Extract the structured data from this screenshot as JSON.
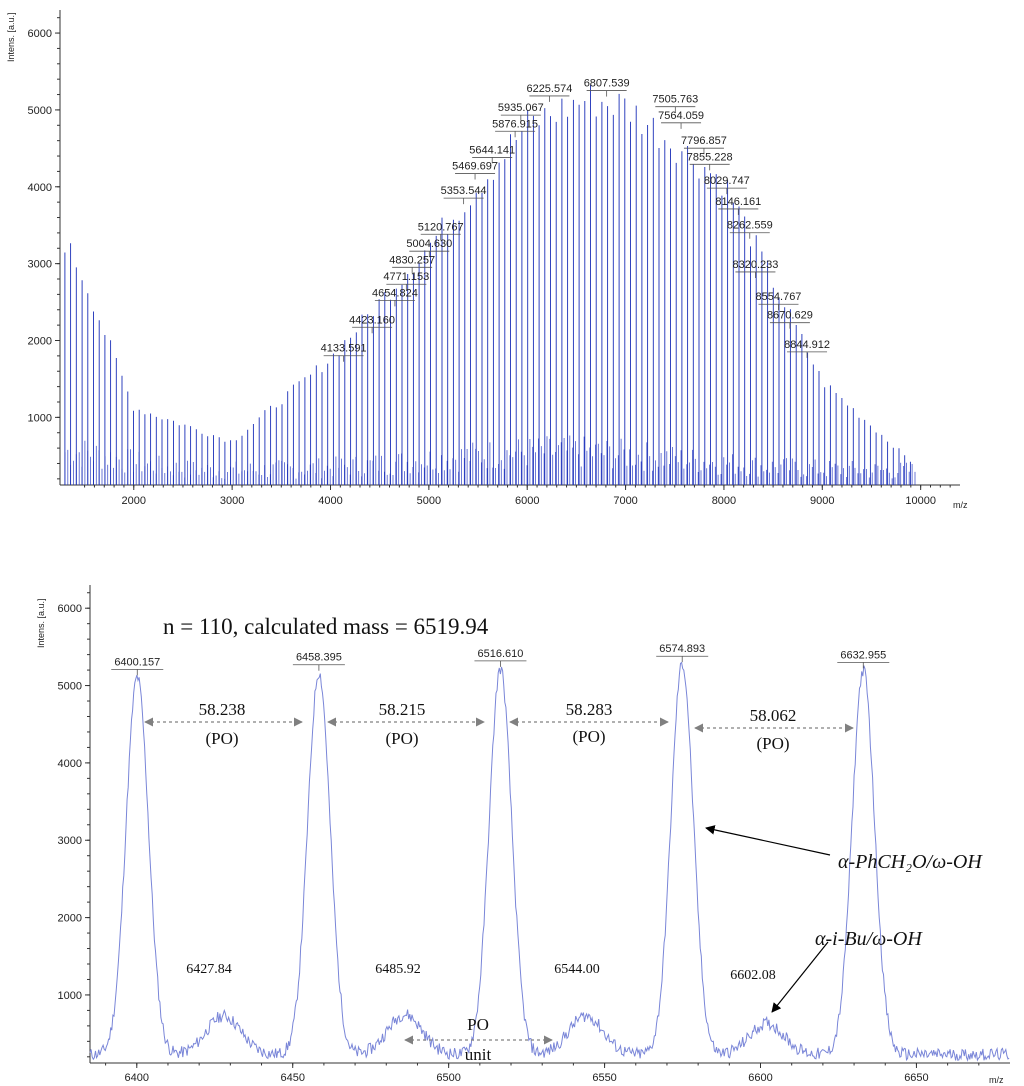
{
  "top": {
    "ylabel": "Intens. [a.u.]",
    "xlabel": "m/z",
    "xticks": [
      2000,
      3000,
      4000,
      5000,
      6000,
      7000,
      8000,
      9000,
      10000
    ],
    "yticks": [
      1000,
      2000,
      3000,
      4000,
      5000,
      6000
    ],
    "colors": {
      "spectrum": "#1a2fb8",
      "axis": "#333333",
      "label": "#222222"
    }
  },
  "bottom": {
    "ylabel": "Intens. [a.u.]",
    "xlabel": "m/z",
    "xticks": [
      6400,
      6450,
      6500,
      6550,
      6600,
      6650
    ],
    "yticks": [
      1000,
      2000,
      3000,
      4000,
      5000,
      6000
    ],
    "annotation": "n = 110, calculated mass = 6519.94",
    "spacings": [
      {
        "value": "58.238",
        "unit": "(PO)"
      },
      {
        "value": "58.215",
        "unit": "(PO)"
      },
      {
        "value": "58.283",
        "unit": "(PO)"
      },
      {
        "value": "58.062",
        "unit": "(PO)"
      }
    ],
    "minor_labels": [
      "6427.84",
      "6485.92",
      "6544.00",
      "6602.08"
    ],
    "po_unit": {
      "line1": "PO",
      "line2": "unit"
    },
    "series_labels": {
      "main": "α-PhCH₂O/ω-OH",
      "minor": "α-i-Bu/ω-OH"
    },
    "colors": {
      "spectrum": "#7a86d8",
      "arrow": "#808080"
    }
  },
  "chart_data": [
    {
      "type": "line",
      "title": "",
      "xlabel": "m/z",
      "ylabel": "Intens. [a.u.]",
      "xlim": [
        1250,
        10400
      ],
      "ylim": [
        120,
        6300
      ],
      "grid": false,
      "peak_labels": [
        {
          "x": 4133.591,
          "y": 1750
        },
        {
          "x": 4423.16,
          "y": 2120
        },
        {
          "x": 4654.824,
          "y": 2470
        },
        {
          "x": 4771.153,
          "y": 2680
        },
        {
          "x": 4830.257,
          "y": 2900
        },
        {
          "x": 5004.63,
          "y": 3110
        },
        {
          "x": 5120.767,
          "y": 3330
        },
        {
          "x": 5353.544,
          "y": 3800
        },
        {
          "x": 5469.697,
          "y": 4120
        },
        {
          "x": 5644.141,
          "y": 4330
        },
        {
          "x": 5876.915,
          "y": 4670
        },
        {
          "x": 5935.067,
          "y": 4880
        },
        {
          "x": 6225.574,
          "y": 5130
        },
        {
          "x": 6807.539,
          "y": 5200
        },
        {
          "x": 7505.763,
          "y": 4990
        },
        {
          "x": 7564.059,
          "y": 4780
        },
        {
          "x": 7796.857,
          "y": 4450
        },
        {
          "x": 7855.228,
          "y": 4240
        },
        {
          "x": 8029.747,
          "y": 3930
        },
        {
          "x": 8146.161,
          "y": 3660
        },
        {
          "x": 8262.559,
          "y": 3350
        },
        {
          "x": 8320.233,
          "y": 2840
        },
        {
          "x": 8554.767,
          "y": 2420
        },
        {
          "x": 8670.629,
          "y": 2180
        },
        {
          "x": 8844.912,
          "y": 1800
        }
      ],
      "series": [
        {
          "values": [
            [
              1300,
              3350
            ],
            [
              1500,
              2850
            ],
            [
              2000,
              1150
            ],
            [
              3000,
              700
            ],
            [
              4000,
              1800
            ],
            [
              5000,
              3300
            ],
            [
              6000,
              4900
            ],
            [
              6600,
              5250
            ],
            [
              7000,
              5150
            ],
            [
              8000,
              4150
            ],
            [
              9000,
              1500
            ],
            [
              9950,
              380
            ]
          ]
        }
      ]
    },
    {
      "type": "line",
      "title": "",
      "xlabel": "m/z",
      "ylabel": "Intens. [a.u.]",
      "xlim": [
        6385,
        6680
      ],
      "ylim": [
        120,
        6300
      ],
      "grid": false,
      "peak_labels": [
        {
          "x": 6400.157,
          "y": 5080
        },
        {
          "x": 6458.395,
          "y": 5140
        },
        {
          "x": 6516.61,
          "y": 5190
        },
        {
          "x": 6574.893,
          "y": 5250
        },
        {
          "x": 6632.955,
          "y": 5170
        }
      ],
      "series": [
        {
          "values": [
            [
              6400.157,
              5080
            ],
            [
              6458.395,
              5140
            ],
            [
              6516.61,
              5190
            ],
            [
              6574.893,
              5250
            ],
            [
              6632.955,
              5170
            ],
            [
              6427.84,
              700
            ],
            [
              6485.92,
              720
            ],
            [
              6544.0,
              700
            ],
            [
              6602.08,
              600
            ]
          ]
        }
      ]
    }
  ]
}
